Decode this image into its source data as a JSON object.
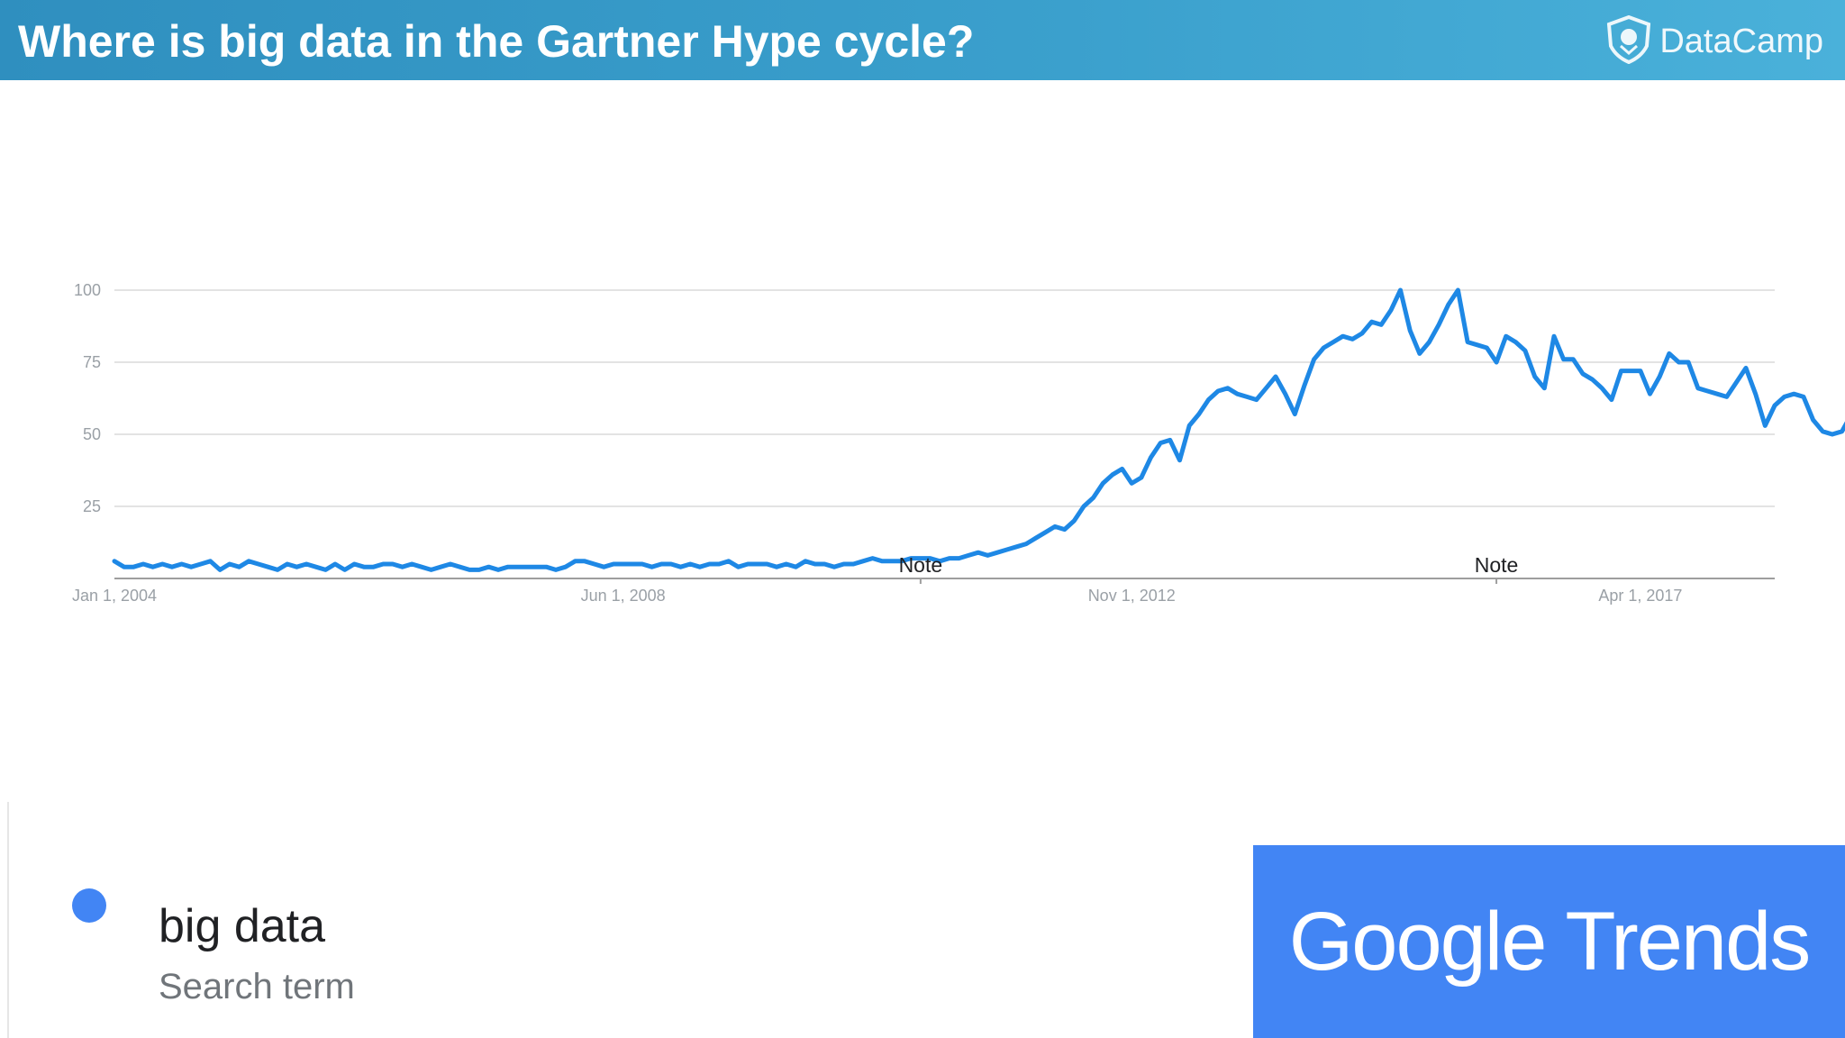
{
  "slide": {
    "title": "Where is big data in the Gartner Hype cycle?",
    "brand": "DataCamp",
    "brand_icon": "datacamp-shield-icon",
    "header_color": "#3a9fcc"
  },
  "legend": {
    "term": "big data",
    "subtitle": "Search term",
    "color": "#4285f4"
  },
  "badge": {
    "text": "Google Trends",
    "color": "#4285f4"
  },
  "chart_data": {
    "type": "line",
    "title": "",
    "xlabel": "",
    "ylabel": "",
    "ylim": [
      0,
      100
    ],
    "yticks": [
      25,
      50,
      75,
      100
    ],
    "grid": true,
    "x_ticks": [
      "Jan 1, 2004",
      "Jun 1, 2008",
      "Nov 1, 2012",
      "Apr 1, 2017"
    ],
    "x_start": "Jan 1, 2004",
    "x_end": "Jun 1, 2018",
    "annotations": [
      {
        "text": "Note",
        "x": "Jan 1, 2011"
      },
      {
        "text": "Note",
        "x": "Jan 1, 2016"
      }
    ],
    "series": [
      {
        "name": "big data",
        "color": "#1e88e5",
        "values": [
          6,
          4,
          4,
          5,
          4,
          5,
          4,
          5,
          4,
          5,
          6,
          3,
          5,
          4,
          6,
          5,
          4,
          3,
          5,
          4,
          5,
          4,
          3,
          5,
          3,
          5,
          4,
          4,
          5,
          5,
          4,
          5,
          4,
          3,
          4,
          5,
          4,
          3,
          3,
          4,
          3,
          4,
          4,
          4,
          4,
          4,
          3,
          4,
          6,
          6,
          5,
          4,
          5,
          5,
          5,
          5,
          4,
          5,
          5,
          4,
          5,
          4,
          5,
          5,
          6,
          4,
          5,
          5,
          5,
          4,
          5,
          4,
          6,
          5,
          5,
          4,
          5,
          5,
          6,
          7,
          6,
          6,
          6,
          7,
          7,
          7,
          6,
          7,
          7,
          8,
          9,
          8,
          9,
          10,
          11,
          12,
          14,
          16,
          18,
          17,
          20,
          25,
          28,
          33,
          36,
          38,
          33,
          35,
          42,
          47,
          48,
          41,
          53,
          57,
          62,
          65,
          66,
          64,
          63,
          62,
          66,
          70,
          64,
          57,
          67,
          76,
          80,
          82,
          84,
          83,
          85,
          89,
          88,
          93,
          100,
          86,
          78,
          82,
          88,
          95,
          100,
          82,
          81,
          80,
          75,
          84,
          82,
          79,
          70,
          66,
          84,
          76,
          76,
          71,
          69,
          66,
          62,
          72,
          72,
          72,
          64,
          70,
          78,
          75,
          75,
          66,
          65,
          64,
          63,
          68,
          73,
          64,
          53,
          60,
          63,
          64,
          63,
          55,
          51,
          50,
          51,
          57,
          63
        ]
      }
    ]
  }
}
